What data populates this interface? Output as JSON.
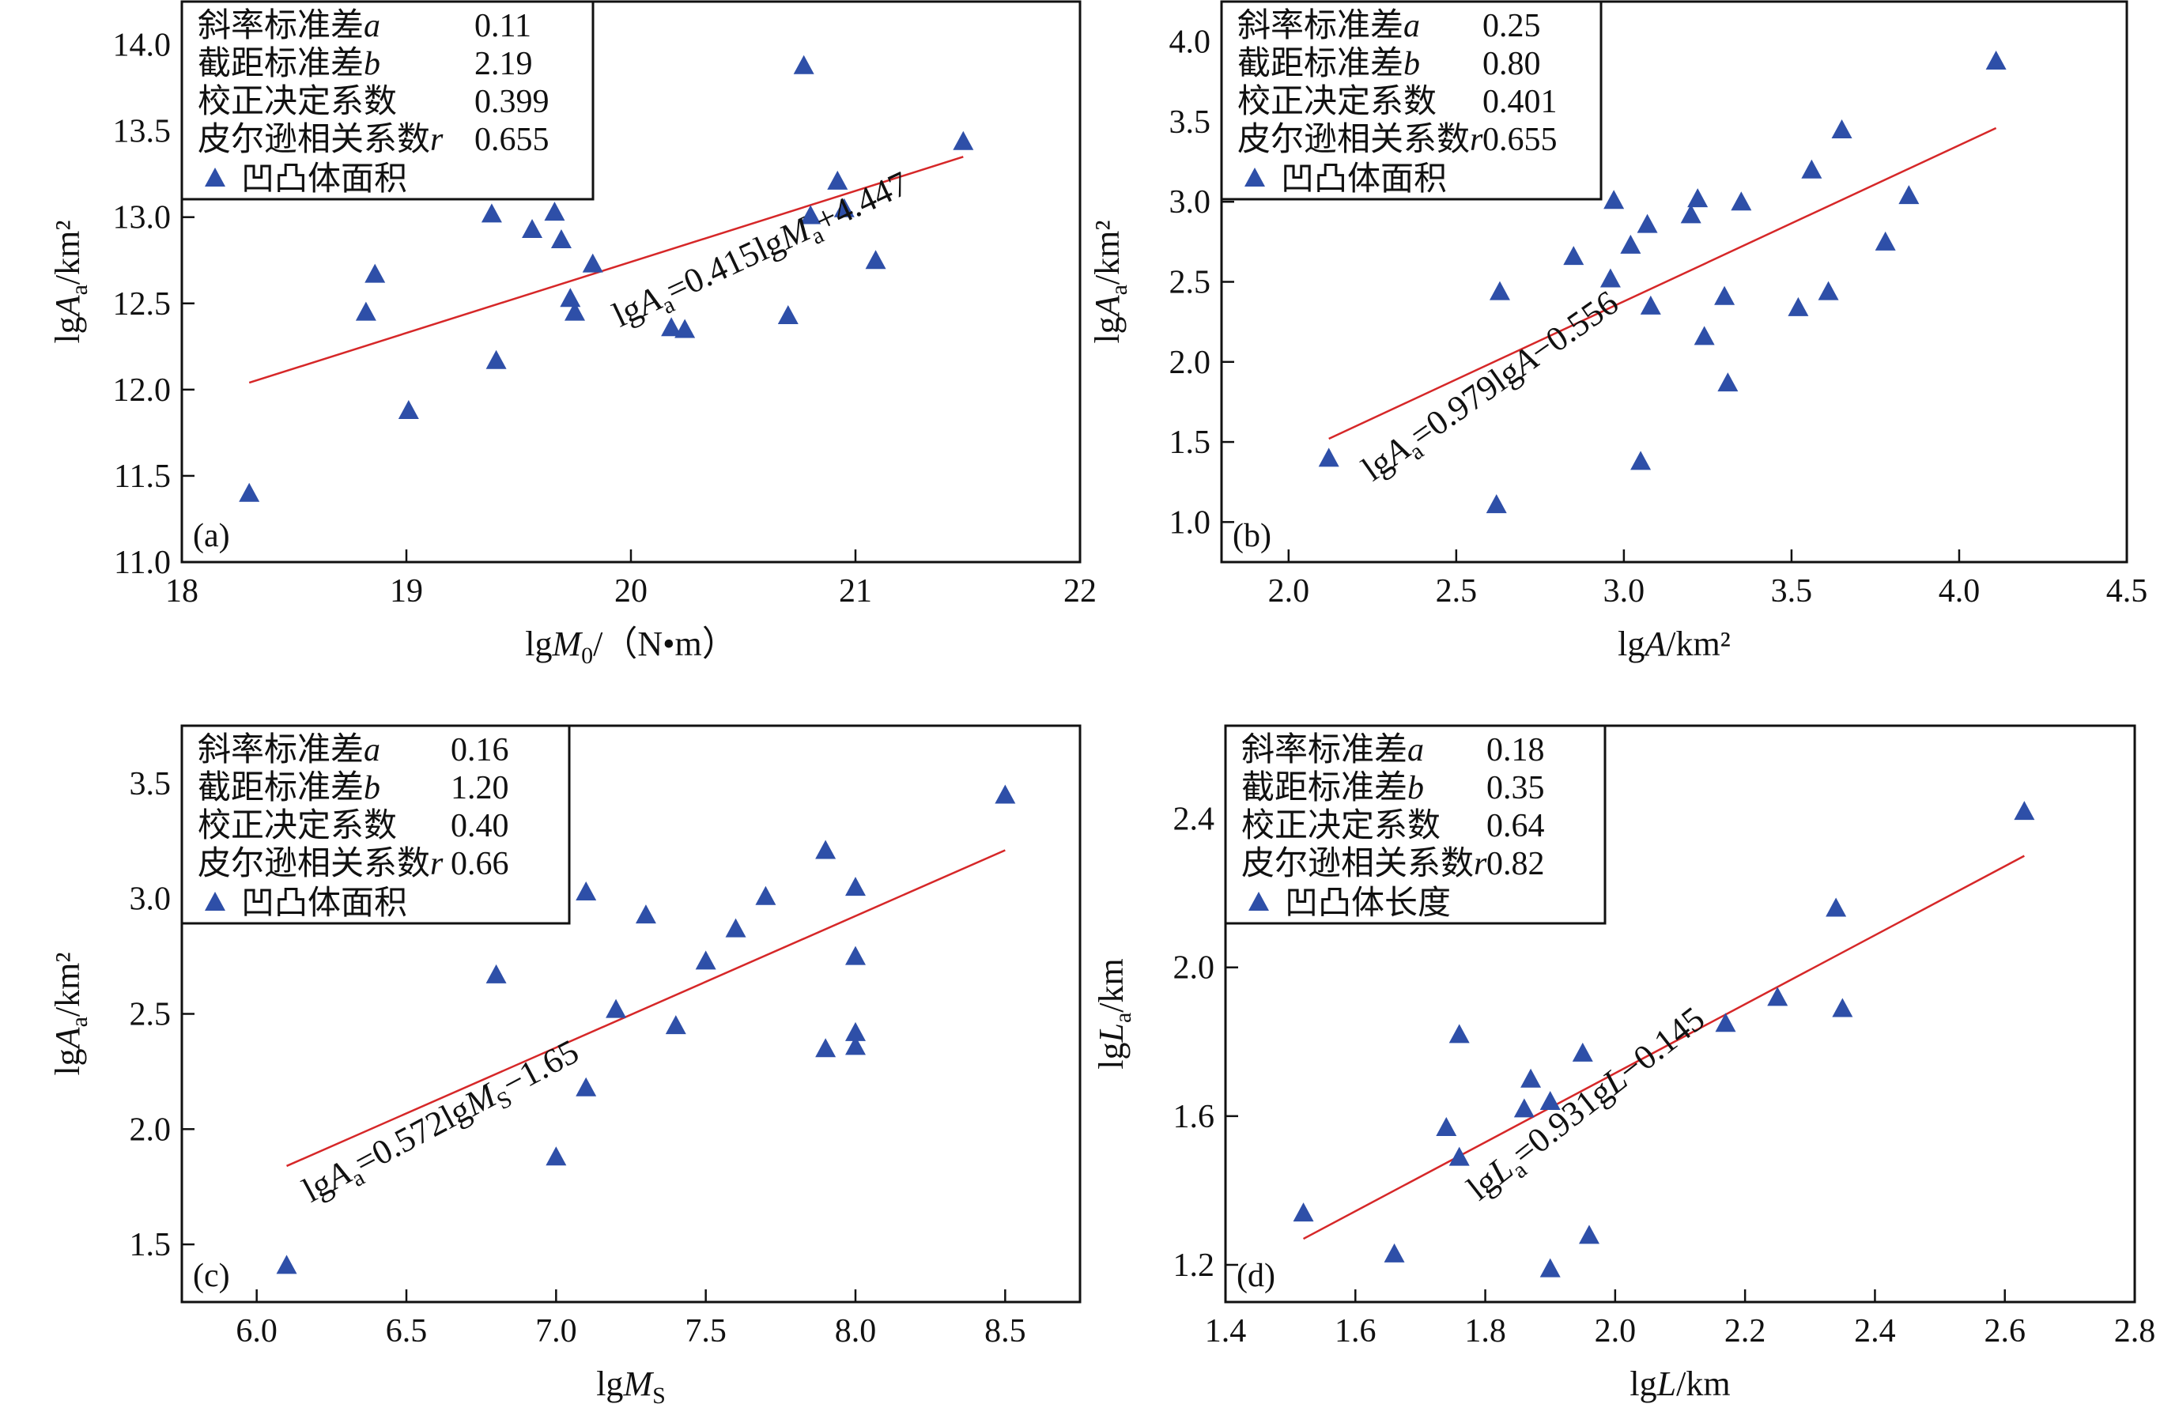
{
  "chart_data": [
    {
      "id": "a",
      "type": "scatter",
      "panel_tag": "(a)",
      "xlabel": "lgM0/(N•m)",
      "xlabel_parts": {
        "pre": "lg",
        "var": "M",
        "sub": "0",
        "post": "/（N•m）"
      },
      "ylabel": "lgAa/km²",
      "ylabel_parts": {
        "pre": "lg",
        "var": "A",
        "sub": "a",
        "post": "/km²"
      },
      "xlim": [
        18,
        22
      ],
      "ylim": [
        11.0,
        14.25
      ],
      "xticks": [
        18,
        19,
        20,
        21,
        22
      ],
      "xtick_labels": [
        "18",
        "19",
        "20",
        "21",
        "22"
      ],
      "yticks": [
        11.0,
        11.5,
        12.0,
        12.5,
        13.0,
        13.5,
        14.0
      ],
      "ytick_labels": [
        "11.0",
        "11.5",
        "12.0",
        "12.5",
        "13.0",
        "13.5",
        "14.0"
      ],
      "legend": {
        "rows": [
          {
            "label": "斜率标准差",
            "italic": "a",
            "value": "0.11"
          },
          {
            "label": "截距标准差",
            "italic": "b",
            "value": "2.19"
          },
          {
            "label": "校正决定系数",
            "italic": "",
            "value": "0.399"
          },
          {
            "label": "皮尔逊相关系数",
            "italic": "r",
            "value": "0.655"
          }
        ],
        "series_label": "凹凸体面积",
        "placement": "top-left"
      },
      "series": [
        {
          "name": "凹凸体面积",
          "marker": "triangle",
          "color": "#2e4fa8",
          "points": [
            [
              18.3,
              11.4
            ],
            [
              18.82,
              12.45
            ],
            [
              18.86,
              12.67
            ],
            [
              19.01,
              11.88
            ],
            [
              19.38,
              13.02
            ],
            [
              19.4,
              12.17
            ],
            [
              19.56,
              12.93
            ],
            [
              19.66,
              13.03
            ],
            [
              19.69,
              12.87
            ],
            [
              19.73,
              12.53
            ],
            [
              19.75,
              12.45
            ],
            [
              19.83,
              12.73
            ],
            [
              20.18,
              12.36
            ],
            [
              20.24,
              12.35
            ],
            [
              20.7,
              12.43
            ],
            [
              20.77,
              13.88
            ],
            [
              20.8,
              13.01
            ],
            [
              20.92,
              13.21
            ],
            [
              20.95,
              13.05
            ],
            [
              21.09,
              12.75
            ],
            [
              21.48,
              13.44
            ]
          ]
        }
      ],
      "fit_line": {
        "color": "#d62728",
        "x": [
          18.3,
          21.48
        ],
        "y": [
          12.04,
          13.35
        ]
      },
      "equation": {
        "pre": "lg",
        "var": "A",
        "sub": "a",
        "mid": "=0.415lg",
        "var2": "M",
        "sub2": "a",
        "post": "+4.447",
        "anchor": [
          19.95,
          12.36
        ],
        "angle_deg": -25
      }
    },
    {
      "id": "b",
      "type": "scatter",
      "panel_tag": "(b)",
      "xlabel": "lgA/km²",
      "xlabel_parts": {
        "pre": "lg",
        "var": "A",
        "sub": "",
        "post": "/km²"
      },
      "ylabel": "lgAa/km²",
      "ylabel_parts": {
        "pre": "lg",
        "var": "A",
        "sub": "a",
        "post": "/km²"
      },
      "xlim": [
        1.8,
        4.5
      ],
      "ylim": [
        0.75,
        4.25
      ],
      "xticks": [
        2.0,
        2.5,
        3.0,
        3.5,
        4.0,
        4.5
      ],
      "xtick_labels": [
        "2.0",
        "2.5",
        "3.0",
        "3.5",
        "4.0",
        "4.5"
      ],
      "yticks": [
        1.0,
        1.5,
        2.0,
        2.5,
        3.0,
        3.5,
        4.0
      ],
      "ytick_labels": [
        "1.0",
        "1.5",
        "2.0",
        "2.5",
        "3.0",
        "3.5",
        "4.0"
      ],
      "legend": {
        "rows": [
          {
            "label": "斜率标准差",
            "italic": "a",
            "value": "0.25"
          },
          {
            "label": "截距标准差",
            "italic": "b",
            "value": "0.80"
          },
          {
            "label": "校正决定系数",
            "italic": "",
            "value": "0.401"
          },
          {
            "label": "皮尔逊相关系数",
            "italic": "r",
            "value": "0.655"
          }
        ],
        "series_label": "凹凸体面积",
        "placement": "top-left"
      },
      "series": [
        {
          "name": "凹凸体面积",
          "marker": "triangle",
          "color": "#2e4fa8",
          "points": [
            [
              2.12,
              1.4
            ],
            [
              2.62,
              1.11
            ],
            [
              2.63,
              2.44
            ],
            [
              2.85,
              2.66
            ],
            [
              2.96,
              2.52
            ],
            [
              2.97,
              3.01
            ],
            [
              3.02,
              2.73
            ],
            [
              3.05,
              1.38
            ],
            [
              3.07,
              2.86
            ],
            [
              3.08,
              2.35
            ],
            [
              3.2,
              2.92
            ],
            [
              3.22,
              3.02
            ],
            [
              3.24,
              2.16
            ],
            [
              3.3,
              2.41
            ],
            [
              3.31,
              1.87
            ],
            [
              3.35,
              3.0
            ],
            [
              3.52,
              2.34
            ],
            [
              3.56,
              3.2
            ],
            [
              3.61,
              2.44
            ],
            [
              3.65,
              3.45
            ],
            [
              3.78,
              2.75
            ],
            [
              3.85,
              3.04
            ],
            [
              4.11,
              3.88
            ]
          ]
        }
      ],
      "fit_line": {
        "color": "#d62728",
        "x": [
          2.12,
          4.11
        ],
        "y": [
          1.52,
          3.46
        ]
      },
      "equation": {
        "pre": "lg",
        "var": "A",
        "sub": "a",
        "mid": "=0.979lg",
        "var2": "A",
        "sub2": "",
        "post": "−0.556",
        "anchor": [
          2.25,
          1.25
        ],
        "angle_deg": -35
      }
    },
    {
      "id": "c",
      "type": "scatter",
      "panel_tag": "(c)",
      "xlabel": "lgMS",
      "xlabel_parts": {
        "pre": "lg",
        "var": "M",
        "sub": "S",
        "post": ""
      },
      "ylabel": "lgAa/km²",
      "ylabel_parts": {
        "pre": "lg",
        "var": "A",
        "sub": "a",
        "post": "/km²"
      },
      "xlim": [
        5.75,
        8.75
      ],
      "ylim": [
        1.25,
        3.75
      ],
      "xticks": [
        6.0,
        6.5,
        7.0,
        7.5,
        8.0,
        8.5
      ],
      "xtick_labels": [
        "6.0",
        "6.5",
        "7.0",
        "7.5",
        "8.0",
        "8.5"
      ],
      "yticks": [
        1.5,
        2.0,
        2.5,
        3.0,
        3.5
      ],
      "ytick_labels": [
        "1.5",
        "2.0",
        "2.5",
        "3.0",
        "3.5"
      ],
      "legend": {
        "rows": [
          {
            "label": "斜率标准差",
            "italic": "a",
            "value": "0.16"
          },
          {
            "label": "截距标准差",
            "italic": "b",
            "value": "1.20"
          },
          {
            "label": "校正决定系数",
            "italic": "",
            "value": "0.40"
          },
          {
            "label": "皮尔逊相关系数",
            "italic": "r",
            "value": "0.66"
          }
        ],
        "series_label": "凹凸体面积",
        "placement": "top-left"
      },
      "series": [
        {
          "name": "凹凸体面积",
          "marker": "triangle",
          "color": "#2e4fa8",
          "points": [
            [
              6.1,
              1.41
            ],
            [
              6.8,
              2.67
            ],
            [
              7.0,
              1.88
            ],
            [
              7.1,
              3.03
            ],
            [
              7.1,
              2.18
            ],
            [
              7.2,
              2.52
            ],
            [
              7.3,
              2.93
            ],
            [
              7.4,
              2.45
            ],
            [
              7.5,
              2.73
            ],
            [
              7.6,
              2.87
            ],
            [
              7.7,
              3.01
            ],
            [
              7.9,
              3.21
            ],
            [
              7.9,
              2.35
            ],
            [
              8.0,
              3.05
            ],
            [
              8.0,
              2.75
            ],
            [
              8.0,
              2.42
            ],
            [
              8.0,
              2.36
            ],
            [
              8.5,
              3.45
            ]
          ]
        }
      ],
      "fit_line": {
        "color": "#d62728",
        "x": [
          6.1,
          8.5
        ],
        "y": [
          1.84,
          3.21
        ]
      },
      "equation": {
        "pre": "lg",
        "var": "A",
        "sub": "a",
        "mid": "=0.572lg",
        "var2": "M",
        "sub2": "S",
        "post": "−1.65",
        "anchor": [
          6.18,
          1.68
        ],
        "angle_deg": -28
      }
    },
    {
      "id": "d",
      "type": "scatter",
      "panel_tag": "(d)",
      "xlabel": "lgL/km",
      "xlabel_parts": {
        "pre": "lg",
        "var": "L",
        "sub": "",
        "post": "/km"
      },
      "ylabel": "lgLa/km",
      "ylabel_parts": {
        "pre": "lg",
        "var": "L",
        "sub": "a",
        "post": "/km"
      },
      "xlim": [
        1.4,
        2.8
      ],
      "ylim": [
        1.1,
        2.65
      ],
      "xticks": [
        1.4,
        1.6,
        1.8,
        2.0,
        2.2,
        2.4,
        2.6,
        2.8
      ],
      "xtick_labels": [
        "1.4",
        "1.6",
        "1.8",
        "2.0",
        "2.2",
        "2.4",
        "2.6",
        "2.8"
      ],
      "yticks": [
        1.2,
        1.6,
        2.0,
        2.4
      ],
      "ytick_labels": [
        "1.2",
        "1.6",
        "2.0",
        "2.4"
      ],
      "legend": {
        "rows": [
          {
            "label": "斜率标准差",
            "italic": "a",
            "value": "0.18"
          },
          {
            "label": "截距标准差",
            "italic": "b",
            "value": "0.35"
          },
          {
            "label": "校正决定系数",
            "italic": "",
            "value": "0.64"
          },
          {
            "label": "皮尔逊相关系数",
            "italic": "r",
            "value": "0.82"
          }
        ],
        "series_label": "凹凸体长度",
        "placement": "top-left"
      },
      "series": [
        {
          "name": "凹凸体长度",
          "marker": "triangle",
          "color": "#2e4fa8",
          "points": [
            [
              1.52,
              1.34
            ],
            [
              1.66,
              1.23
            ],
            [
              1.74,
              1.57
            ],
            [
              1.76,
              1.82
            ],
            [
              1.76,
              1.49
            ],
            [
              1.86,
              1.62
            ],
            [
              1.87,
              1.7
            ],
            [
              1.9,
              1.64
            ],
            [
              1.9,
              1.19
            ],
            [
              1.95,
              1.77
            ],
            [
              1.96,
              1.28
            ],
            [
              2.17,
              1.85
            ],
            [
              2.25,
              1.92
            ],
            [
              2.34,
              2.16
            ],
            [
              2.35,
              1.89
            ],
            [
              2.63,
              2.42
            ]
          ]
        }
      ],
      "fit_line": {
        "color": "#d62728",
        "x": [
          1.52,
          2.63
        ],
        "y": [
          1.27,
          2.3
        ]
      },
      "equation": {
        "pre": "lg",
        "var": "L",
        "sub": "a",
        "mid": "=0.931g",
        "var2": "L",
        "sub2": "",
        "post": "−0.145",
        "anchor": [
          1.79,
          1.37
        ],
        "angle_deg": -38
      }
    }
  ]
}
